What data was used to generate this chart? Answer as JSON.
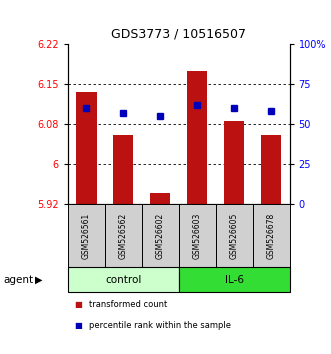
{
  "title": "GDS3773 / 10516507",
  "samples": [
    "GSM526561",
    "GSM526562",
    "GSM526602",
    "GSM526603",
    "GSM526605",
    "GSM526678"
  ],
  "bar_values": [
    6.135,
    6.055,
    5.945,
    6.175,
    6.08,
    6.055
  ],
  "dot_values": [
    60,
    57,
    55,
    62,
    60,
    58
  ],
  "ylim_left": [
    5.925,
    6.225
  ],
  "ylim_right": [
    0,
    100
  ],
  "yticks_left": [
    5.925,
    6.0,
    6.075,
    6.15,
    6.225
  ],
  "yticks_right": [
    0,
    25,
    50,
    75,
    100
  ],
  "bar_color": "#bb1111",
  "dot_color": "#0000bb",
  "bar_bottom": 5.925,
  "ctrl_color": "#ccffcc",
  "il6_color": "#33dd33",
  "legend_labels": [
    "transformed count",
    "percentile rank within the sample"
  ],
  "legend_colors": [
    "#bb1111",
    "#0000bb"
  ],
  "xlabel_agent": "agent"
}
